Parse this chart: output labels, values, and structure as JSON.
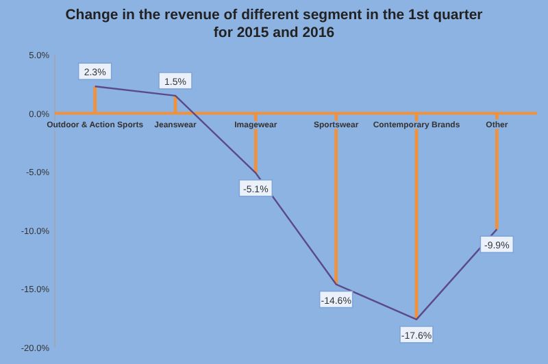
{
  "chart_data": {
    "type": "line",
    "title": "Change in the revenue of different segment in the 1st quarter for 2015 and 2016",
    "categories": [
      "Outdoor & Action Sports",
      "Jeanswear",
      "Imagewear",
      "Sportswear",
      "Contemporary Brands",
      "Other"
    ],
    "series": [
      {
        "type": "bar",
        "color": "#f0923c",
        "values": [
          2.3,
          1.5,
          -5.1,
          -14.6,
          -17.6,
          -9.9
        ]
      },
      {
        "color": "#5b4a8a",
        "values": [
          2.3,
          1.5,
          -5.1,
          -14.6,
          -17.6,
          -9.9
        ],
        "value_labels": [
          "2.3%",
          "1.5%",
          "-5.1%",
          "-14.6%",
          "-17.6%",
          "-9.9%"
        ]
      }
    ],
    "ylim": [
      -20,
      5
    ],
    "yticks": [
      {
        "value": 5,
        "label": "5.0%"
      },
      {
        "value": 0,
        "label": "0.0%"
      },
      {
        "value": -5,
        "label": "-5.0%"
      },
      {
        "value": -10,
        "label": "-10.0%"
      },
      {
        "value": -15,
        "label": "-15.0%"
      },
      {
        "value": -20,
        "label": "-20.0%"
      }
    ],
    "line_style": "solid"
  }
}
